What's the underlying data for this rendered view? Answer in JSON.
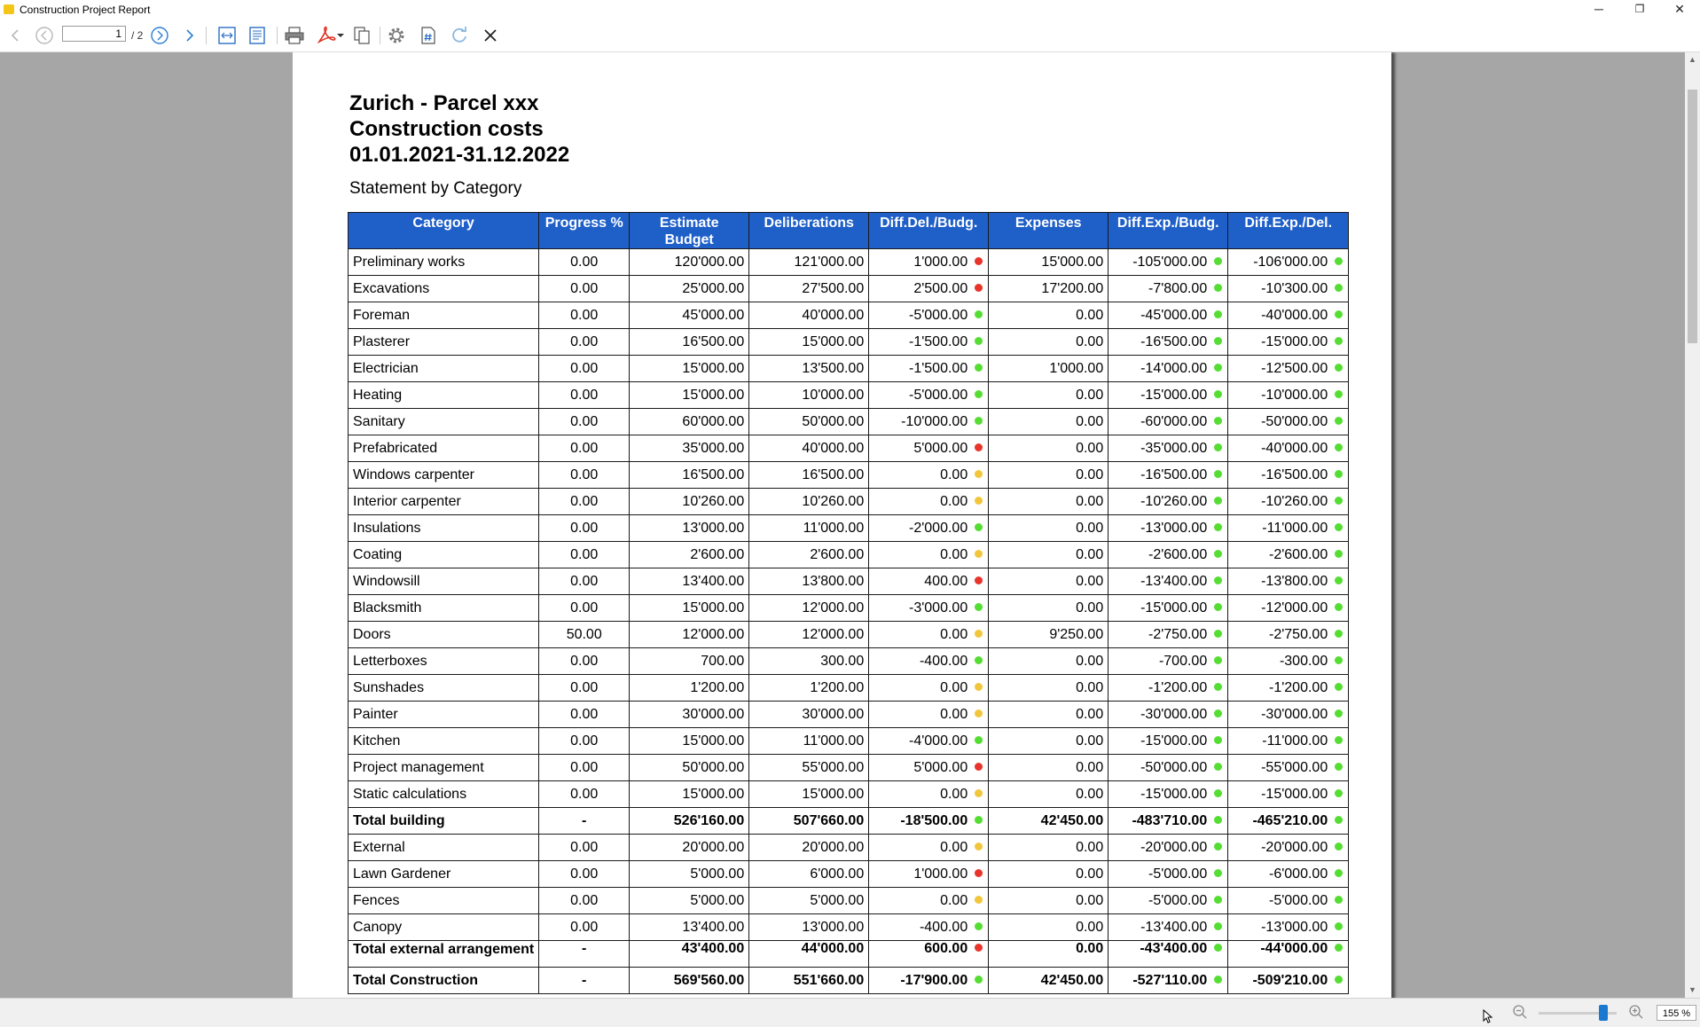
{
  "window": {
    "title": "Construction Project Report",
    "minimize_glyph": "─",
    "restore_glyph": "❐",
    "close_glyph": "✕"
  },
  "toolbar": {
    "page_current": "1",
    "page_total": "/ 2"
  },
  "report": {
    "title_lines": [
      "Zurich - Parcel xxx",
      "Construction costs",
      "01.01.2021-31.12.2022"
    ],
    "subtitle": "Statement by Category",
    "columns": [
      "Category",
      "Progress %",
      "Estimate Budget",
      "Deliberations",
      "Diff.Del./Budg.",
      "Expenses",
      "Diff.Exp./Budg.",
      "Diff.Exp./Del."
    ],
    "rows": [
      [
        "Preliminary works",
        "0.00",
        "120'000.00",
        "121'000.00",
        "1'000.00",
        "15'000.00",
        "-105'000.00",
        "-106'000.00"
      ],
      [
        "Excavations",
        "0.00",
        "25'000.00",
        "27'500.00",
        "2'500.00",
        "17'200.00",
        "-7'800.00",
        "-10'300.00"
      ],
      [
        "Foreman",
        "0.00",
        "45'000.00",
        "40'000.00",
        "-5'000.00",
        "0.00",
        "-45'000.00",
        "-40'000.00"
      ],
      [
        "Plasterer",
        "0.00",
        "16'500.00",
        "15'000.00",
        "-1'500.00",
        "0.00",
        "-16'500.00",
        "-15'000.00"
      ],
      [
        "Electrician",
        "0.00",
        "15'000.00",
        "13'500.00",
        "-1'500.00",
        "1'000.00",
        "-14'000.00",
        "-12'500.00"
      ],
      [
        "Heating",
        "0.00",
        "15'000.00",
        "10'000.00",
        "-5'000.00",
        "0.00",
        "-15'000.00",
        "-10'000.00"
      ],
      [
        "Sanitary",
        "0.00",
        "60'000.00",
        "50'000.00",
        "-10'000.00",
        "0.00",
        "-60'000.00",
        "-50'000.00"
      ],
      [
        "Prefabricated",
        "0.00",
        "35'000.00",
        "40'000.00",
        "5'000.00",
        "0.00",
        "-35'000.00",
        "-40'000.00"
      ],
      [
        "Windows carpenter",
        "0.00",
        "16'500.00",
        "16'500.00",
        "0.00",
        "0.00",
        "-16'500.00",
        "-16'500.00"
      ],
      [
        "Interior carpenter",
        "0.00",
        "10'260.00",
        "10'260.00",
        "0.00",
        "0.00",
        "-10'260.00",
        "-10'260.00"
      ],
      [
        "Insulations",
        "0.00",
        "13'000.00",
        "11'000.00",
        "-2'000.00",
        "0.00",
        "-13'000.00",
        "-11'000.00"
      ],
      [
        "Coating",
        "0.00",
        "2'600.00",
        "2'600.00",
        "0.00",
        "0.00",
        "-2'600.00",
        "-2'600.00"
      ],
      [
        "Windowsill",
        "0.00",
        "13'400.00",
        "13'800.00",
        "400.00",
        "0.00",
        "-13'400.00",
        "-13'800.00"
      ],
      [
        "Blacksmith",
        "0.00",
        "15'000.00",
        "12'000.00",
        "-3'000.00",
        "0.00",
        "-15'000.00",
        "-12'000.00"
      ],
      [
        "Doors",
        "50.00",
        "12'000.00",
        "12'000.00",
        "0.00",
        "9'250.00",
        "-2'750.00",
        "-2'750.00"
      ],
      [
        "Letterboxes",
        "0.00",
        "700.00",
        "300.00",
        "-400.00",
        "0.00",
        "-700.00",
        "-300.00"
      ],
      [
        "Sunshades",
        "0.00",
        "1'200.00",
        "1'200.00",
        "0.00",
        "0.00",
        "-1'200.00",
        "-1'200.00"
      ],
      [
        "Painter",
        "0.00",
        "30'000.00",
        "30'000.00",
        "0.00",
        "0.00",
        "-30'000.00",
        "-30'000.00"
      ],
      [
        "Kitchen",
        "0.00",
        "15'000.00",
        "11'000.00",
        "-4'000.00",
        "0.00",
        "-15'000.00",
        "-11'000.00"
      ],
      [
        "Project management",
        "0.00",
        "50'000.00",
        "55'000.00",
        "5'000.00",
        "0.00",
        "-50'000.00",
        "-55'000.00"
      ],
      [
        "Static calculations",
        "0.00",
        "15'000.00",
        "15'000.00",
        "0.00",
        "0.00",
        "-15'000.00",
        "-15'000.00"
      ],
      [
        "Total building",
        "-",
        "526'160.00",
        "507'660.00",
        "-18'500.00",
        "42'450.00",
        "-483'710.00",
        "-465'210.00"
      ],
      [
        "External",
        "0.00",
        "20'000.00",
        "20'000.00",
        "0.00",
        "0.00",
        "-20'000.00",
        "-20'000.00"
      ],
      [
        "Lawn Gardener",
        "0.00",
        "5'000.00",
        "6'000.00",
        "1'000.00",
        "0.00",
        "-5'000.00",
        "-6'000.00"
      ],
      [
        "Fences",
        "0.00",
        "5'000.00",
        "5'000.00",
        "0.00",
        "0.00",
        "-5'000.00",
        "-5'000.00"
      ],
      [
        "Canopy",
        "0.00",
        "13'400.00",
        "13'000.00",
        "-400.00",
        "0.00",
        "-13'400.00",
        "-13'000.00"
      ],
      [
        "Total external arrangement",
        "-",
        "43'400.00",
        "44'000.00",
        "600.00",
        "0.00",
        "-43'400.00",
        "-44'000.00"
      ],
      [
        "Total Construction",
        "-",
        "569'560.00",
        "551'660.00",
        "-17'900.00",
        "42'450.00",
        "-527'110.00",
        "-509'210.00"
      ]
    ],
    "total_rows": [
      "Total building",
      "Total external arrangement",
      "Total Construction"
    ],
    "status_colors": {
      "red": "#e8342a",
      "green": "#55dd33",
      "yellow": "#f2c63c"
    },
    "header_color": "#1f5fc8"
  },
  "statusbar": {
    "zoom": "155 %"
  }
}
